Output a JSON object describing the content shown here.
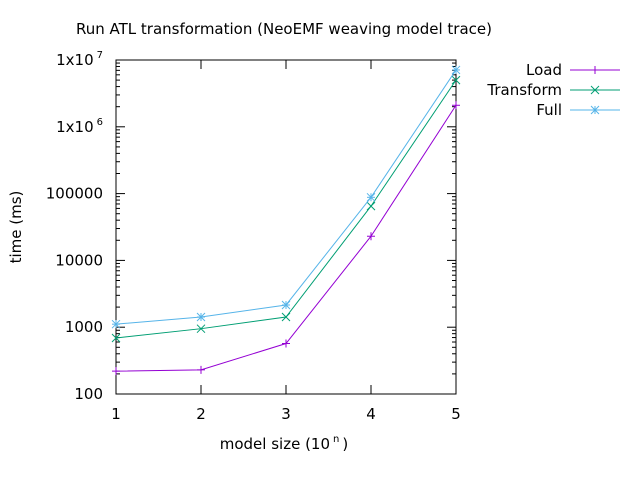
{
  "chart_data": {
    "type": "line",
    "title": "Run ATL transformation (NeoEMF weaving model   trace)",
    "xlabel": "model size (10 n )",
    "xlabel_base": "model size (10",
    "xlabel_sup": "n",
    "xlabel_close": ")",
    "ylabel": "time (ms)",
    "x": [
      1,
      2,
      3,
      4,
      5
    ],
    "xlim": [
      1,
      5
    ],
    "ylim": [
      100,
      10000000
    ],
    "yscale": "log",
    "grid": false,
    "legend_position": "top-right-outside",
    "x_ticks": [
      {
        "value": 1,
        "label": "1"
      },
      {
        "value": 2,
        "label": "2"
      },
      {
        "value": 3,
        "label": "3"
      },
      {
        "value": 4,
        "label": "4"
      },
      {
        "value": 5,
        "label": "5"
      }
    ],
    "y_ticks": [
      {
        "value": 100,
        "label": "100"
      },
      {
        "value": 1000,
        "label": "1000"
      },
      {
        "value": 10000,
        "label": "10000"
      },
      {
        "value": 100000,
        "label": "100000"
      },
      {
        "value": 1000000,
        "label": "1x10",
        "sup": "6"
      },
      {
        "value": 10000000,
        "label": "1x10",
        "sup": "7"
      }
    ],
    "series": [
      {
        "name": "Load",
        "color": "#9400d3",
        "marker": "plus",
        "values": [
          220,
          230,
          570,
          23000,
          2100000
        ]
      },
      {
        "name": "Transform",
        "color": "#009e73",
        "marker": "cross",
        "values": [
          690,
          950,
          1420,
          65000,
          5000000
        ]
      },
      {
        "name": "Full",
        "color": "#56b4e9",
        "marker": "star",
        "values": [
          1110,
          1420,
          2150,
          88000,
          7100000
        ]
      }
    ]
  }
}
